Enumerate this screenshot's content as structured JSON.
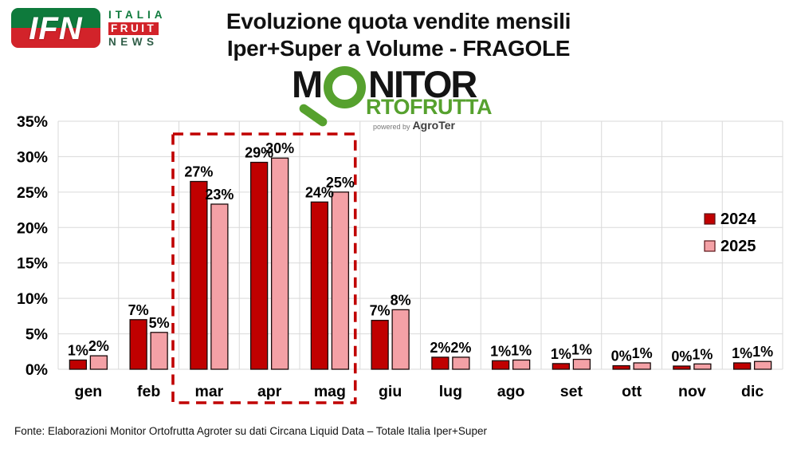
{
  "header": {
    "ifn": {
      "acronym": "IFN",
      "italia": "ITALIA",
      "fruit": "FRUIT",
      "news": "NEWS"
    },
    "title_line1": "Evoluzione quota vendite mensili",
    "title_line2": "Iper+Super a Volume - FRAGOLE",
    "monitor": {
      "m": "M",
      "nitor": "NITOR",
      "rtofrutta": "RTOFRUTTA",
      "powered_by": "powered by",
      "agroter": "AgroTer"
    }
  },
  "chart_data": {
    "type": "bar",
    "categories": [
      "gen",
      "feb",
      "mar",
      "apr",
      "mag",
      "giu",
      "lug",
      "ago",
      "set",
      "ott",
      "nov",
      "dic"
    ],
    "series": [
      {
        "name": "2024",
        "color": "#C00000",
        "values": [
          1,
          7,
          27,
          29,
          24,
          7,
          2,
          1,
          1,
          0,
          0,
          1
        ],
        "values_precise": [
          1.3,
          7.0,
          26.5,
          29.2,
          23.6,
          6.9,
          1.7,
          1.2,
          0.8,
          0.5,
          0.45,
          0.9
        ]
      },
      {
        "name": "2025",
        "color": "#F4A1A6",
        "values": [
          2,
          5,
          23,
          30,
          25,
          8,
          2,
          1,
          1,
          1,
          1,
          1
        ],
        "values_precise": [
          1.9,
          5.2,
          23.3,
          29.8,
          25.0,
          8.4,
          1.7,
          1.3,
          1.4,
          0.9,
          0.75,
          1.1
        ]
      }
    ],
    "value_suffix": "%",
    "ylim": [
      0,
      35
    ],
    "ytick_step": 5,
    "ytick_labels": [
      "0%",
      "5%",
      "10%",
      "15%",
      "20%",
      "25%",
      "30%",
      "35%"
    ],
    "grid": true,
    "grid_color": "#D9D9D9",
    "bar_outline_color": "#1a0a0a",
    "legend_position": "right-inside",
    "legend_text_color": "#000000",
    "highlight": {
      "categories": [
        "mar",
        "apr",
        "mag"
      ],
      "color": "#C00000",
      "style": "dashed"
    }
  },
  "footer": {
    "source": "Fonte: Elaborazioni Monitor Ortofrutta Agroter su dati Circana Liquid Data – Totale Italia Iper+Super"
  }
}
